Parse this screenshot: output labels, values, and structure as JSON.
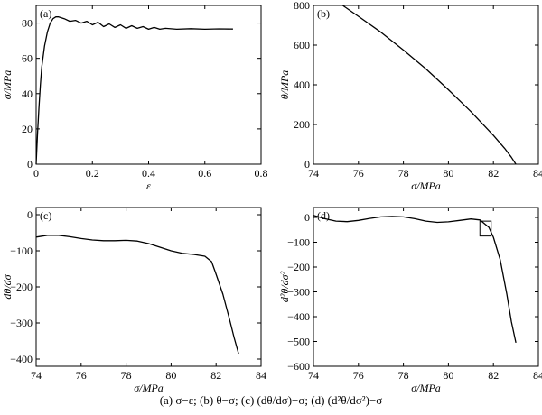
{
  "caption": "(a) σ−ε; (b) θ−σ; (c) (dθ/dσ)−σ; (d) (d²θ/dσ²)−σ",
  "chart_data": [
    {
      "id": "a",
      "panel_label": "(a)",
      "type": "line",
      "xlabel": "ε",
      "ylabel": "σ/MPa",
      "xlim": [
        0,
        0.8
      ],
      "ylim": [
        0,
        90
      ],
      "xticks": [
        0,
        0.2,
        0.4,
        0.6,
        0.8
      ],
      "xtick_labels": [
        "0",
        "0.2",
        "0.4",
        "0.6",
        "0.8"
      ],
      "yticks": [
        0,
        20,
        40,
        60,
        80
      ],
      "ytick_labels": [
        "0",
        "20",
        "40",
        "60",
        "80"
      ],
      "grid": false,
      "series": [
        {
          "x": [
            0,
            0.005,
            0.01,
            0.015,
            0.02,
            0.03,
            0.04,
            0.05,
            0.06,
            0.07,
            0.08,
            0.1,
            0.12,
            0.14,
            0.16,
            0.18,
            0.2,
            0.22,
            0.24,
            0.26,
            0.28,
            0.3,
            0.32,
            0.34,
            0.36,
            0.38,
            0.4,
            0.42,
            0.44,
            0.46,
            0.5,
            0.55,
            0.6,
            0.65,
            0.7
          ],
          "y": [
            0,
            18,
            32,
            45,
            55,
            67,
            75,
            80,
            82.5,
            83.5,
            83.5,
            82.5,
            81,
            81.5,
            80,
            81,
            79,
            80.5,
            78,
            79.5,
            77.5,
            79,
            77,
            78.5,
            77,
            78,
            76.5,
            77.5,
            76.5,
            77,
            76.5,
            76.8,
            76.5,
            76.7,
            76.6
          ]
        }
      ]
    },
    {
      "id": "b",
      "panel_label": "(b)",
      "type": "line",
      "xlabel": "σ/MPa",
      "ylabel": "θ/MPa",
      "xlim": [
        74,
        84
      ],
      "ylim": [
        0,
        800
      ],
      "xticks": [
        74,
        76,
        78,
        80,
        82,
        84
      ],
      "xtick_labels": [
        "74",
        "76",
        "78",
        "80",
        "82",
        "84"
      ],
      "yticks": [
        0,
        200,
        400,
        600,
        800
      ],
      "ytick_labels": [
        "0",
        "200",
        "400",
        "600",
        "800"
      ],
      "grid": false,
      "series": [
        {
          "x": [
            75.3,
            76,
            77,
            78,
            79,
            80,
            81,
            82,
            82.5,
            82.8,
            83.0
          ],
          "y": [
            800,
            745,
            665,
            575,
            480,
            375,
            265,
            145,
            80,
            35,
            0
          ]
        }
      ]
    },
    {
      "id": "c",
      "panel_label": "(c)",
      "type": "line",
      "xlabel": "σ/MPa",
      "ylabel": "dθ/dσ",
      "xlim": [
        74,
        84
      ],
      "ylim": [
        -420,
        20
      ],
      "xticks": [
        74,
        76,
        78,
        80,
        82,
        84
      ],
      "xtick_labels": [
        "74",
        "76",
        "78",
        "80",
        "82",
        "84"
      ],
      "yticks": [
        0,
        -100,
        -200,
        -300,
        -400
      ],
      "ytick_labels": [
        "0",
        "−100",
        "−200",
        "−300",
        "−400"
      ],
      "grid": false,
      "series": [
        {
          "x": [
            74.0,
            74.5,
            75.0,
            75.5,
            76.0,
            76.5,
            77.0,
            77.5,
            78.0,
            78.5,
            79.0,
            79.5,
            80.0,
            80.5,
            81.0,
            81.5,
            81.8,
            82.0,
            82.3,
            82.6,
            82.8,
            83.0
          ],
          "y": [
            -62,
            -57,
            -57,
            -61,
            -66,
            -70,
            -72,
            -72,
            -71,
            -73,
            -80,
            -90,
            -100,
            -107,
            -110,
            -115,
            -130,
            -165,
            -220,
            -290,
            -340,
            -385
          ]
        }
      ]
    },
    {
      "id": "d",
      "panel_label": "(d)",
      "type": "line",
      "xlabel": "σ/MPa",
      "ylabel": "d²θ/dσ²",
      "xlim": [
        74,
        84
      ],
      "ylim": [
        -600,
        40
      ],
      "xticks": [
        74,
        76,
        78,
        80,
        82,
        84
      ],
      "xtick_labels": [
        "74",
        "76",
        "78",
        "80",
        "82",
        "84"
      ],
      "yticks": [
        0,
        -100,
        -200,
        -300,
        -400,
        -500,
        -600
      ],
      "ytick_labels": [
        "0",
        "−100",
        "−200",
        "−300",
        "−400",
        "−500",
        "−600"
      ],
      "grid": false,
      "series": [
        {
          "x": [
            74.0,
            74.5,
            75.0,
            75.5,
            76.0,
            76.5,
            77.0,
            77.5,
            78.0,
            78.5,
            79.0,
            79.5,
            80.0,
            80.5,
            81.0,
            81.4,
            81.8,
            82.0,
            82.3,
            82.6,
            82.8,
            83.0
          ],
          "y": [
            8,
            -5,
            -15,
            -17,
            -12,
            -4,
            2,
            4,
            2,
            -5,
            -15,
            -20,
            -18,
            -12,
            -6,
            -10,
            -40,
            -80,
            -170,
            -310,
            -420,
            -505
          ]
        }
      ],
      "annotation_box": {
        "x": [
          81.4,
          81.9
        ],
        "y": [
          -75,
          -15
        ]
      }
    }
  ]
}
